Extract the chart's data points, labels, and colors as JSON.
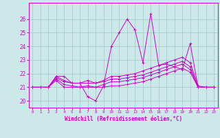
{
  "xlabel": "Windchill (Refroidissement éolien,°C)",
  "xlim": [
    -0.5,
    23.5
  ],
  "ylim": [
    19.5,
    27.2
  ],
  "yticks": [
    20,
    21,
    22,
    23,
    24,
    25,
    26
  ],
  "x_ticks": [
    0,
    1,
    2,
    3,
    4,
    5,
    6,
    7,
    8,
    9,
    10,
    11,
    12,
    13,
    14,
    15,
    16,
    17,
    18,
    19,
    20,
    21,
    22,
    23
  ],
  "bg_color": "#cce8e8",
  "grid_color": "#aacccc",
  "line_color": "#cc00cc",
  "series": [
    [
      21.0,
      21.0,
      21.0,
      21.8,
      21.8,
      21.3,
      21.3,
      20.3,
      20.0,
      21.1,
      24.0,
      25.0,
      26.0,
      25.2,
      22.8,
      26.4,
      22.6,
      22.7,
      22.5,
      22.3,
      24.2,
      21.0,
      21.0,
      21.0
    ],
    [
      21.0,
      21.0,
      21.0,
      21.8,
      21.5,
      21.3,
      21.3,
      21.5,
      21.3,
      21.5,
      21.8,
      21.8,
      21.9,
      22.0,
      22.2,
      22.4,
      22.6,
      22.8,
      23.0,
      23.2,
      22.8,
      21.1,
      21.0,
      21.0
    ],
    [
      21.0,
      21.0,
      21.0,
      21.7,
      21.4,
      21.3,
      21.3,
      21.3,
      21.3,
      21.4,
      21.6,
      21.6,
      21.7,
      21.8,
      21.9,
      22.1,
      22.3,
      22.5,
      22.7,
      22.9,
      22.5,
      21.0,
      21.0,
      21.0
    ],
    [
      21.0,
      21.0,
      21.0,
      21.6,
      21.2,
      21.1,
      21.0,
      21.1,
      21.0,
      21.2,
      21.4,
      21.4,
      21.5,
      21.6,
      21.7,
      21.9,
      22.1,
      22.3,
      22.5,
      22.7,
      22.3,
      21.0,
      21.0,
      21.0
    ],
    [
      21.0,
      21.0,
      21.0,
      21.5,
      21.0,
      21.0,
      21.0,
      21.0,
      21.0,
      21.0,
      21.1,
      21.1,
      21.2,
      21.3,
      21.4,
      21.6,
      21.8,
      22.0,
      22.2,
      22.4,
      22.1,
      21.0,
      21.0,
      21.0
    ]
  ]
}
